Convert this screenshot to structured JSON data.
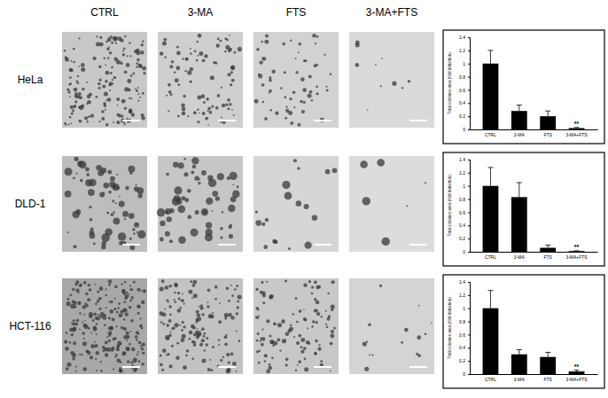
{
  "figure": {
    "columns": [
      "CTRL",
      "3-MA",
      "FTS",
      "3-MA+FTS"
    ],
    "rows": [
      "HeLa",
      "DLD-1",
      "HCT-116"
    ]
  },
  "chart_data": [
    {
      "type": "bar",
      "y_label": "Total colonies area (fold induction)",
      "categories": [
        "CTRL",
        "3-MA",
        "FTS",
        "3-MA+FTS"
      ],
      "values": [
        1.0,
        0.28,
        0.2,
        0.02
      ],
      "errors": [
        0.2,
        0.09,
        0.08,
        0.01
      ],
      "color": "#000000",
      "ylim": [
        0,
        1.4
      ],
      "yticks": [
        0,
        0.2,
        0.4,
        0.6,
        0.8,
        1,
        1.2,
        1.4
      ],
      "annotations": [
        {
          "category": "3-MA+FTS",
          "text": "**"
        }
      ]
    },
    {
      "type": "bar",
      "y_label": "Total colonies area (fold induction)",
      "categories": [
        "CTRL",
        "3-MA",
        "FTS",
        "3-MA+FTS"
      ],
      "values": [
        1.0,
        0.83,
        0.06,
        0.01
      ],
      "errors": [
        0.28,
        0.22,
        0.04,
        0.005
      ],
      "color": "#000000",
      "ylim": [
        0,
        1.4
      ],
      "yticks": [
        0,
        0.2,
        0.4,
        0.6,
        0.8,
        1,
        1.2,
        1.4
      ],
      "annotations": [
        {
          "category": "3-MA+FTS",
          "text": "**"
        }
      ]
    },
    {
      "type": "bar",
      "y_label": "Total colonies area (fold induction)",
      "categories": [
        "CTRL",
        "3-MA",
        "FTS",
        "3-MA+FTS"
      ],
      "values": [
        1.0,
        0.3,
        0.26,
        0.04
      ],
      "errors": [
        0.27,
        0.07,
        0.07,
        0.02
      ],
      "color": "#000000",
      "ylim": [
        0,
        1.4
      ],
      "yticks": [
        0,
        0.2,
        0.4,
        0.6,
        0.8,
        1,
        1.2,
        1.4
      ],
      "annotations": [
        {
          "category": "3-MA+FTS",
          "text": "**"
        }
      ]
    }
  ]
}
